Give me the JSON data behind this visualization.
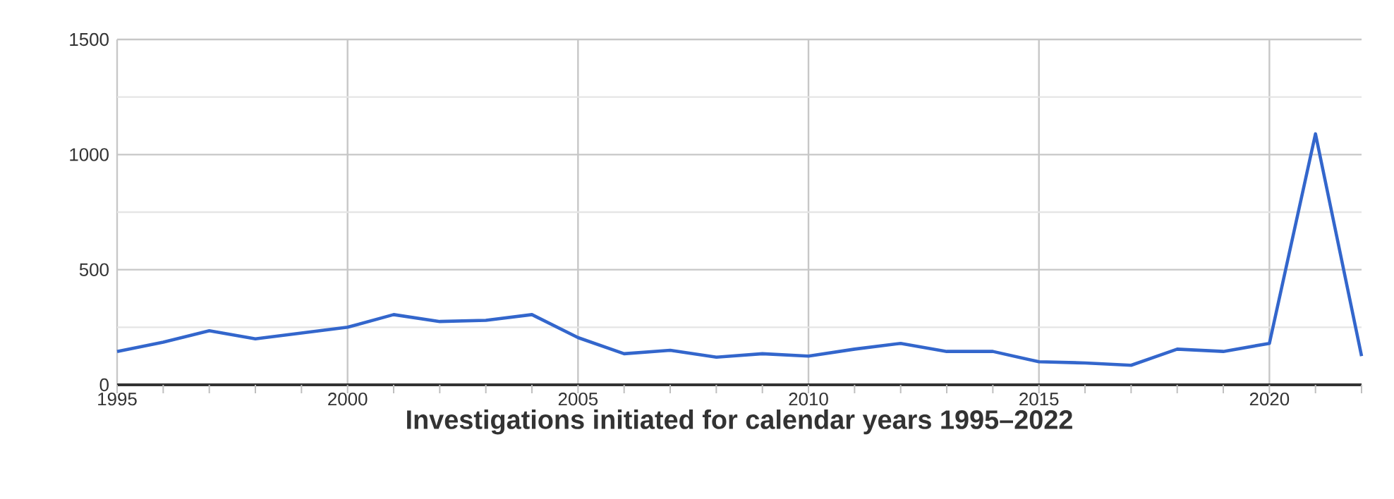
{
  "chart_data": {
    "type": "line",
    "xlabel": "Investigations initiated for calendar years 1995–2022",
    "x": [
      1995,
      1996,
      1997,
      1998,
      1999,
      2000,
      2001,
      2002,
      2003,
      2004,
      2005,
      2006,
      2007,
      2008,
      2009,
      2010,
      2011,
      2012,
      2013,
      2014,
      2015,
      2016,
      2017,
      2018,
      2019,
      2020,
      2021,
      2022
    ],
    "series": [
      {
        "color": "#3366cc",
        "values": [
          145,
          185,
          235,
          200,
          225,
          250,
          305,
          275,
          280,
          305,
          205,
          135,
          150,
          120,
          135,
          125,
          155,
          180,
          145,
          145,
          100,
          95,
          85,
          155,
          145,
          180,
          1090,
          125
        ]
      }
    ],
    "xlim": [
      1995,
      2022
    ],
    "xticks": [
      1995,
      2000,
      2005,
      2010,
      2015,
      2020
    ],
    "ylim": [
      0,
      1500
    ],
    "yticks": [
      0,
      500,
      1000,
      1500
    ],
    "grid": true,
    "marker": "none",
    "line_style": "solid"
  }
}
